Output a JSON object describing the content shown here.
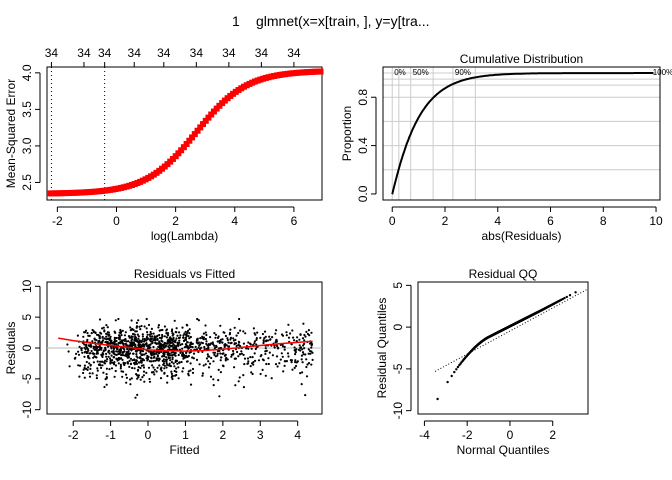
{
  "figure": {
    "main_title_prefix": "1",
    "main_title": "glmnet(x=x[train, ], y=y[tra..."
  },
  "chart_data": [
    {
      "type": "line",
      "id": "cv",
      "title": "",
      "xlabel": "log(Lambda)",
      "ylabel": "Mean-Squared Error",
      "xlim": [
        -2.35,
        6.95
      ],
      "ylim": [
        2.26,
        4.08
      ],
      "xticks": [
        -2,
        0,
        2,
        4,
        6
      ],
      "yticks": [
        2.5,
        3.0,
        3.5,
        4.0
      ],
      "yticklabels": [
        "2.5",
        "3.0",
        "3.5",
        "4.0"
      ],
      "top_axis": {
        "ticks": [
          -2.2,
          -1.1,
          -0.4,
          0.6,
          1.6,
          2.7,
          3.8,
          4.9,
          6.0
        ],
        "labels": [
          "34",
          "34",
          "34",
          "34",
          "34",
          "34",
          "34",
          "34",
          "34"
        ]
      },
      "vlines": [
        -2.2,
        -0.4
      ],
      "color": "#ff0000",
      "curve": {
        "lambda_min": -2.25,
        "lambda_max": 6.9,
        "n_points": 100,
        "low": 2.345,
        "high": 4.03,
        "midpoint": 2.7,
        "scale": 0.85
      }
    },
    {
      "type": "line",
      "id": "ecdf",
      "title": "Cumulative Distribution",
      "xlabel": "abs(Residuals)",
      "ylabel": "Proportion",
      "xlim": [
        -0.35,
        10.15
      ],
      "ylim": [
        -0.05,
        1.05
      ],
      "xticks": [
        0,
        2,
        4,
        6,
        8,
        10
      ],
      "yticks": [
        0.0,
        0.4,
        0.8
      ],
      "yticklabels": [
        "0.0",
        "0.4",
        "0.8"
      ],
      "hgrid": [
        0.2,
        0.4,
        0.6,
        0.8,
        0.9,
        0.95,
        1.0
      ],
      "vgrid": [
        0,
        0.25,
        0.7,
        1.55,
        2.3,
        3.15
      ],
      "quantile_labels": [
        {
          "x": 0.0,
          "label": "0%"
        },
        {
          "x": 0.7,
          "label": "50%"
        },
        {
          "x": 2.3,
          "label": "90%"
        },
        {
          "x": 9.8,
          "label": "100%"
        }
      ],
      "curve": {
        "rate": 1.0,
        "shape": 1.05,
        "max_x": 9.9
      }
    },
    {
      "type": "scatter",
      "id": "rvf",
      "title": "Residuals vs Fitted",
      "xlabel": "Fitted",
      "ylabel": "Residuals",
      "xlim": [
        -2.7,
        4.65
      ],
      "ylim": [
        -10.7,
        10.7
      ],
      "xticks": [
        -2,
        -1,
        0,
        1,
        2,
        3,
        4
      ],
      "yticks": [
        -10,
        -5,
        0,
        5,
        10
      ],
      "hline": 0,
      "n_points": 1400,
      "smooth": {
        "x": [
          -2.4,
          -2.0,
          -1.5,
          -1.0,
          -0.5,
          0.0,
          0.5,
          1.0,
          1.5,
          2.0,
          2.5,
          3.0,
          3.5,
          4.0,
          4.4
        ],
        "y": [
          1.6,
          1.2,
          0.8,
          0.4,
          0.1,
          -0.3,
          -0.45,
          -0.5,
          -0.4,
          -0.2,
          0.1,
          0.4,
          0.7,
          0.9,
          1.1
        ]
      },
      "color": "#ff0000"
    },
    {
      "type": "scatter",
      "id": "qq",
      "title": "Residual QQ",
      "xlabel": "Normal Quantiles",
      "ylabel": "Residual Quantiles",
      "xlim": [
        -4.3,
        3.65
      ],
      "ylim": [
        -10.4,
        5.4
      ],
      "xticks": [
        -4,
        -2,
        0,
        2
      ],
      "yticks": [
        -10,
        -5,
        0,
        5
      ],
      "qqline": {
        "x": [
          -3.5,
          3.6
        ],
        "y": [
          -5.3,
          4.5
        ]
      },
      "n_points": 1400
    }
  ]
}
